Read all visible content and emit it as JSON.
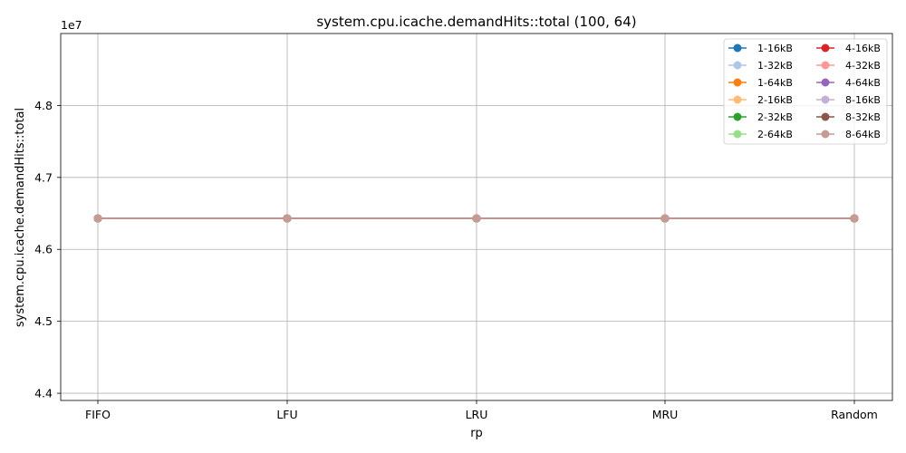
{
  "chart_data": {
    "type": "line",
    "title": "system.cpu.icache.demandHits::total (100, 64)",
    "xlabel": "rp",
    "ylabel": "system.cpu.icache.demandHits::total",
    "y_offset_label": "1e7",
    "categories": [
      "FIFO",
      "LFU",
      "LRU",
      "MRU",
      "Random"
    ],
    "ylim": [
      43900000,
      49000000
    ],
    "yticks": [
      44000000,
      45000000,
      46000000,
      47000000,
      48000000
    ],
    "ytick_labels": [
      "4.4",
      "4.5",
      "4.6",
      "4.7",
      "4.8"
    ],
    "grid": true,
    "legend_position": "top-right",
    "legend_columns": 2,
    "series": [
      {
        "name": "1-16kB",
        "color": "#1f77b4",
        "values": [
          46430000,
          46430000,
          46430000,
          46430000,
          46430000
        ]
      },
      {
        "name": "1-32kB",
        "color": "#aec7e8",
        "values": [
          46430000,
          46430000,
          46430000,
          46430000,
          46430000
        ]
      },
      {
        "name": "1-64kB",
        "color": "#ff7f0e",
        "values": [
          46430000,
          46430000,
          46430000,
          46430000,
          46430000
        ]
      },
      {
        "name": "2-16kB",
        "color": "#ffbb78",
        "values": [
          46430000,
          46430000,
          46430000,
          46430000,
          46430000
        ]
      },
      {
        "name": "2-32kB",
        "color": "#2ca02c",
        "values": [
          46430000,
          46430000,
          46430000,
          46430000,
          46430000
        ]
      },
      {
        "name": "2-64kB",
        "color": "#98df8a",
        "values": [
          46430000,
          46430000,
          46430000,
          46430000,
          46430000
        ]
      },
      {
        "name": "4-16kB",
        "color": "#d62728",
        "values": [
          46430000,
          46430000,
          46430000,
          46430000,
          46430000
        ]
      },
      {
        "name": "4-32kB",
        "color": "#ff9896",
        "values": [
          46430000,
          46430000,
          46430000,
          46430000,
          46430000
        ]
      },
      {
        "name": "4-64kB",
        "color": "#9467bd",
        "values": [
          46430000,
          46430000,
          46430000,
          46430000,
          46430000
        ]
      },
      {
        "name": "8-16kB",
        "color": "#c5b0d5",
        "values": [
          46430000,
          46430000,
          46430000,
          46430000,
          46430000
        ]
      },
      {
        "name": "8-32kB",
        "color": "#8c564b",
        "values": [
          46430000,
          46430000,
          46430000,
          46430000,
          46430000
        ]
      },
      {
        "name": "8-64kB",
        "color": "#c49c94",
        "values": [
          46430000,
          46430000,
          46430000,
          46430000,
          46430000
        ]
      }
    ]
  }
}
